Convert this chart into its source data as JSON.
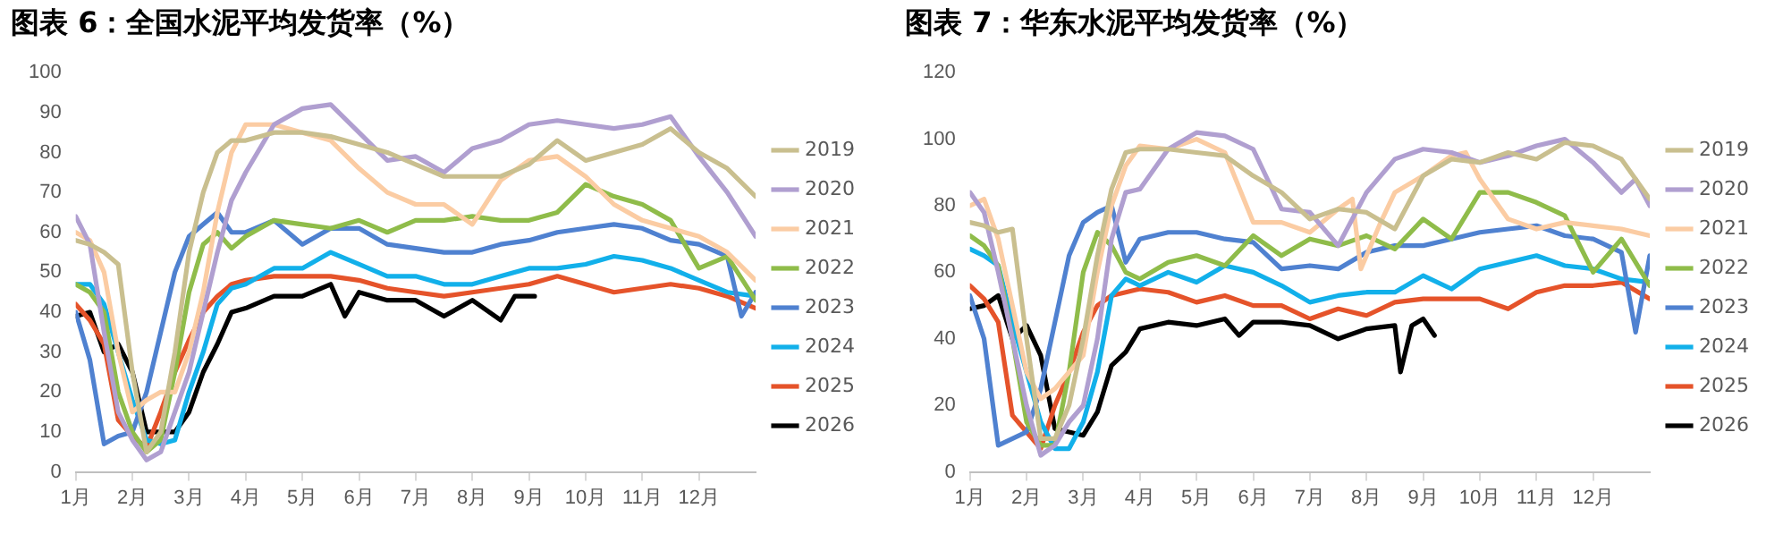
{
  "chart_data": [
    {
      "type": "line",
      "title": "图表 6：全国水泥平均发货率（%）",
      "legend": "right",
      "xlim": [
        1,
        13
      ],
      "ylim": [
        0,
        100
      ],
      "xticks": [
        {
          "value": 1,
          "label": "1月"
        },
        {
          "value": 2,
          "label": "2月"
        },
        {
          "value": 3,
          "label": "3月"
        },
        {
          "value": 4,
          "label": "4月"
        },
        {
          "value": 5,
          "label": "5月"
        },
        {
          "value": 6,
          "label": "6月"
        },
        {
          "value": 7,
          "label": "7月"
        },
        {
          "value": 8,
          "label": "8月"
        },
        {
          "value": 9,
          "label": "9月"
        },
        {
          "value": 10,
          "label": "10月"
        },
        {
          "value": 11,
          "label": "11月"
        },
        {
          "value": 12,
          "label": "12月"
        }
      ],
      "yticks": [
        0,
        10,
        20,
        30,
        40,
        50,
        60,
        70,
        80,
        90,
        100
      ],
      "x": [
        1,
        1.25,
        1.5,
        1.75,
        2,
        2.25,
        2.5,
        2.75,
        3,
        3.25,
        3.5,
        3.75,
        4,
        4.5,
        5,
        5.5,
        6,
        6.5,
        7,
        7.5,
        8,
        8.5,
        9,
        9.5,
        10,
        10.5,
        11,
        11.5,
        12,
        12.5,
        13
      ],
      "series": [
        {
          "name": "2019",
          "color": "#c9bf8f",
          "values": [
            58,
            57,
            55,
            52,
            25,
            5,
            10,
            30,
            55,
            70,
            80,
            83,
            83,
            85,
            85,
            84,
            82,
            80,
            77,
            74,
            74,
            74,
            77,
            83,
            78,
            80,
            82,
            86,
            80,
            76,
            69
          ]
        },
        {
          "name": "2020",
          "color": "#b09fd0",
          "values": [
            64,
            57,
            35,
            15,
            8,
            3,
            5,
            15,
            25,
            40,
            55,
            68,
            75,
            87,
            91,
            92,
            85,
            78,
            79,
            75,
            81,
            83,
            87,
            88,
            87,
            86,
            87,
            89,
            79,
            70,
            59
          ]
        },
        {
          "name": "2021",
          "color": "#fbcca3",
          "values": [
            60,
            58,
            50,
            30,
            15,
            18,
            20,
            20,
            30,
            45,
            65,
            80,
            87,
            87,
            85,
            83,
            76,
            70,
            67,
            67,
            62,
            73,
            78,
            79,
            74,
            67,
            63,
            61,
            59,
            55,
            48
          ]
        },
        {
          "name": "2022",
          "color": "#8fbc4a",
          "values": [
            47,
            45,
            40,
            20,
            10,
            5,
            8,
            25,
            45,
            57,
            60,
            56,
            59,
            63,
            62,
            61,
            63,
            60,
            63,
            63,
            64,
            63,
            63,
            65,
            72,
            69,
            67,
            63,
            51,
            54,
            43
          ]
        },
        {
          "name": "2023",
          "color": "#4f81d0",
          "x": [
            1,
            1.25,
            1.5,
            1.75,
            2,
            2.25,
            2.5,
            2.75,
            3,
            3.25,
            3.5,
            3.75,
            4,
            4.5,
            5,
            5.5,
            6,
            6.5,
            7,
            7.5,
            8,
            8.5,
            9,
            9.5,
            10,
            10.5,
            11,
            11.5,
            12,
            12.5,
            12.75,
            13
          ],
          "values": [
            40,
            28,
            7,
            9,
            10,
            20,
            35,
            50,
            59,
            62,
            65,
            60,
            60,
            63,
            57,
            61,
            61,
            57,
            56,
            55,
            55,
            57,
            58,
            60,
            61,
            62,
            61,
            58,
            57,
            54,
            39,
            45
          ]
        },
        {
          "name": "2024",
          "color": "#12b0ea",
          "values": [
            47,
            47,
            42,
            30,
            18,
            8,
            7,
            8,
            20,
            30,
            42,
            46,
            47,
            51,
            51,
            55,
            52,
            49,
            49,
            47,
            47,
            49,
            51,
            51,
            52,
            54,
            53,
            51,
            48,
            45,
            44
          ]
        },
        {
          "name": "2025",
          "color": "#e5532a",
          "values": [
            42,
            38,
            32,
            13,
            9,
            6,
            15,
            25,
            33,
            40,
            44,
            47,
            48,
            49,
            49,
            49,
            48,
            46,
            45,
            44,
            45,
            46,
            47,
            49,
            47,
            45,
            46,
            47,
            46,
            44,
            41
          ]
        },
        {
          "name": "2026",
          "color": "#000000",
          "x": [
            1,
            1.25,
            1.5,
            1.75,
            2,
            2.25,
            2.5,
            2.75,
            3,
            3.25,
            3.5,
            3.75,
            4,
            4.5,
            5,
            5.5,
            5.75,
            6,
            6.5,
            7,
            7.5,
            8,
            8.5,
            8.75,
            9.1
          ],
          "values": [
            39,
            40,
            30,
            32,
            25,
            10,
            10,
            10,
            15,
            25,
            32,
            40,
            41,
            44,
            44,
            47,
            39,
            45,
            43,
            43,
            39,
            43,
            38,
            44,
            44
          ]
        }
      ]
    },
    {
      "type": "line",
      "title": "图表 7：华东水泥平均发货率（%）",
      "legend": "right",
      "xlim": [
        1,
        13
      ],
      "ylim": [
        0,
        120
      ],
      "xticks": [
        {
          "value": 1,
          "label": "1月"
        },
        {
          "value": 2,
          "label": "2月"
        },
        {
          "value": 3,
          "label": "3月"
        },
        {
          "value": 4,
          "label": "4月"
        },
        {
          "value": 5,
          "label": "5月"
        },
        {
          "value": 6,
          "label": "6月"
        },
        {
          "value": 7,
          "label": "7月"
        },
        {
          "value": 8,
          "label": "8月"
        },
        {
          "value": 9,
          "label": "9月"
        },
        {
          "value": 10,
          "label": "10月"
        },
        {
          "value": 11,
          "label": "11月"
        },
        {
          "value": 12,
          "label": "12月"
        }
      ],
      "yticks": [
        0,
        20,
        40,
        60,
        80,
        100,
        120
      ],
      "x": [
        1,
        1.25,
        1.5,
        1.75,
        2,
        2.25,
        2.5,
        2.75,
        3,
        3.25,
        3.5,
        3.75,
        4,
        4.5,
        5,
        5.5,
        6,
        6.5,
        7,
        7.5,
        8,
        8.5,
        9,
        9.5,
        10,
        10.5,
        11,
        11.5,
        12,
        12.5,
        13
      ],
      "series": [
        {
          "name": "2019",
          "color": "#c9bf8f",
          "values": [
            75,
            74,
            72,
            73,
            40,
            10,
            10,
            20,
            40,
            65,
            85,
            96,
            97,
            97,
            96,
            95,
            89,
            84,
            76,
            79,
            78,
            73,
            89,
            94,
            93,
            96,
            94,
            99,
            98,
            94,
            82
          ]
        },
        {
          "name": "2020",
          "color": "#b09fd0",
          "x": [
            1,
            1.25,
            1.5,
            1.75,
            2,
            2.25,
            2.5,
            2.75,
            3,
            3.25,
            3.5,
            3.75,
            4,
            4.5,
            5,
            5.5,
            6,
            6.5,
            7,
            7.5,
            8,
            8.5,
            9,
            9.5,
            10,
            10.5,
            11,
            11.5,
            12,
            12.5,
            12.75,
            13
          ],
          "values": [
            84,
            78,
            60,
            40,
            20,
            5,
            8,
            15,
            20,
            40,
            70,
            84,
            85,
            97,
            102,
            101,
            97,
            79,
            78,
            68,
            84,
            94,
            97,
            96,
            93,
            95,
            98,
            100,
            93,
            84,
            88,
            80
          ]
        },
        {
          "name": "2021",
          "color": "#fbcca3",
          "x": [
            1,
            1.25,
            1.5,
            1.75,
            2,
            2.25,
            2.5,
            2.75,
            3,
            3.25,
            3.5,
            3.75,
            4,
            4.5,
            5,
            5.5,
            6,
            6.5,
            7,
            7.5,
            7.75,
            7.9,
            8.25,
            8.5,
            9,
            9.5,
            9.75,
            10,
            10.5,
            11,
            11.5,
            12,
            12.5,
            13
          ],
          "values": [
            80,
            82,
            70,
            50,
            30,
            22,
            25,
            30,
            35,
            60,
            80,
            92,
            98,
            97,
            100,
            96,
            75,
            75,
            72,
            79,
            82,
            61,
            75,
            84,
            89,
            95,
            96,
            88,
            76,
            73,
            75,
            74,
            73,
            71
          ]
        },
        {
          "name": "2022",
          "color": "#8fbc4a",
          "values": [
            71,
            68,
            62,
            40,
            15,
            8,
            8,
            30,
            60,
            72,
            68,
            60,
            58,
            63,
            65,
            62,
            71,
            65,
            70,
            68,
            71,
            67,
            76,
            70,
            84,
            84,
            81,
            77,
            60,
            70,
            56
          ]
        },
        {
          "name": "2023",
          "color": "#4f81d0",
          "x": [
            1,
            1.25,
            1.5,
            1.75,
            2,
            2.25,
            2.5,
            2.75,
            3,
            3.25,
            3.5,
            3.75,
            4,
            4.5,
            5,
            5.5,
            6,
            6.5,
            7,
            7.5,
            8,
            8.5,
            9,
            9.5,
            10,
            10.5,
            11,
            11.5,
            12,
            12.5,
            12.75,
            13
          ],
          "values": [
            53,
            40,
            8,
            10,
            12,
            25,
            45,
            65,
            75,
            78,
            80,
            63,
            70,
            72,
            72,
            70,
            69,
            61,
            62,
            61,
            66,
            68,
            68,
            70,
            72,
            73,
            74,
            71,
            70,
            66,
            42,
            65
          ]
        },
        {
          "name": "2024",
          "color": "#12b0ea",
          "values": [
            67,
            65,
            62,
            45,
            30,
            15,
            7,
            7,
            15,
            30,
            53,
            58,
            56,
            60,
            57,
            62,
            60,
            56,
            51,
            53,
            54,
            54,
            59,
            55,
            61,
            63,
            65,
            62,
            61,
            58,
            57
          ]
        },
        {
          "name": "2025",
          "color": "#e5532a",
          "values": [
            56,
            52,
            45,
            17,
            12,
            7,
            20,
            30,
            42,
            50,
            53,
            54,
            55,
            54,
            51,
            53,
            50,
            50,
            46,
            49,
            47,
            51,
            52,
            52,
            52,
            49,
            54,
            56,
            56,
            57,
            52
          ]
        },
        {
          "name": "2026",
          "color": "#000000",
          "x": [
            1,
            1.25,
            1.5,
            1.75,
            2,
            2.25,
            2.5,
            2.75,
            3,
            3.25,
            3.5,
            3.75,
            4,
            4.5,
            5,
            5.5,
            5.75,
            6,
            6.5,
            7,
            7.5,
            8,
            8.5,
            8.6,
            8.8,
            9,
            9.2
          ],
          "values": [
            49,
            50,
            53,
            40,
            44,
            35,
            13,
            12,
            11,
            18,
            32,
            36,
            43,
            45,
            44,
            46,
            41,
            45,
            45,
            44,
            40,
            43,
            44,
            30,
            44,
            46,
            41
          ]
        }
      ]
    }
  ]
}
